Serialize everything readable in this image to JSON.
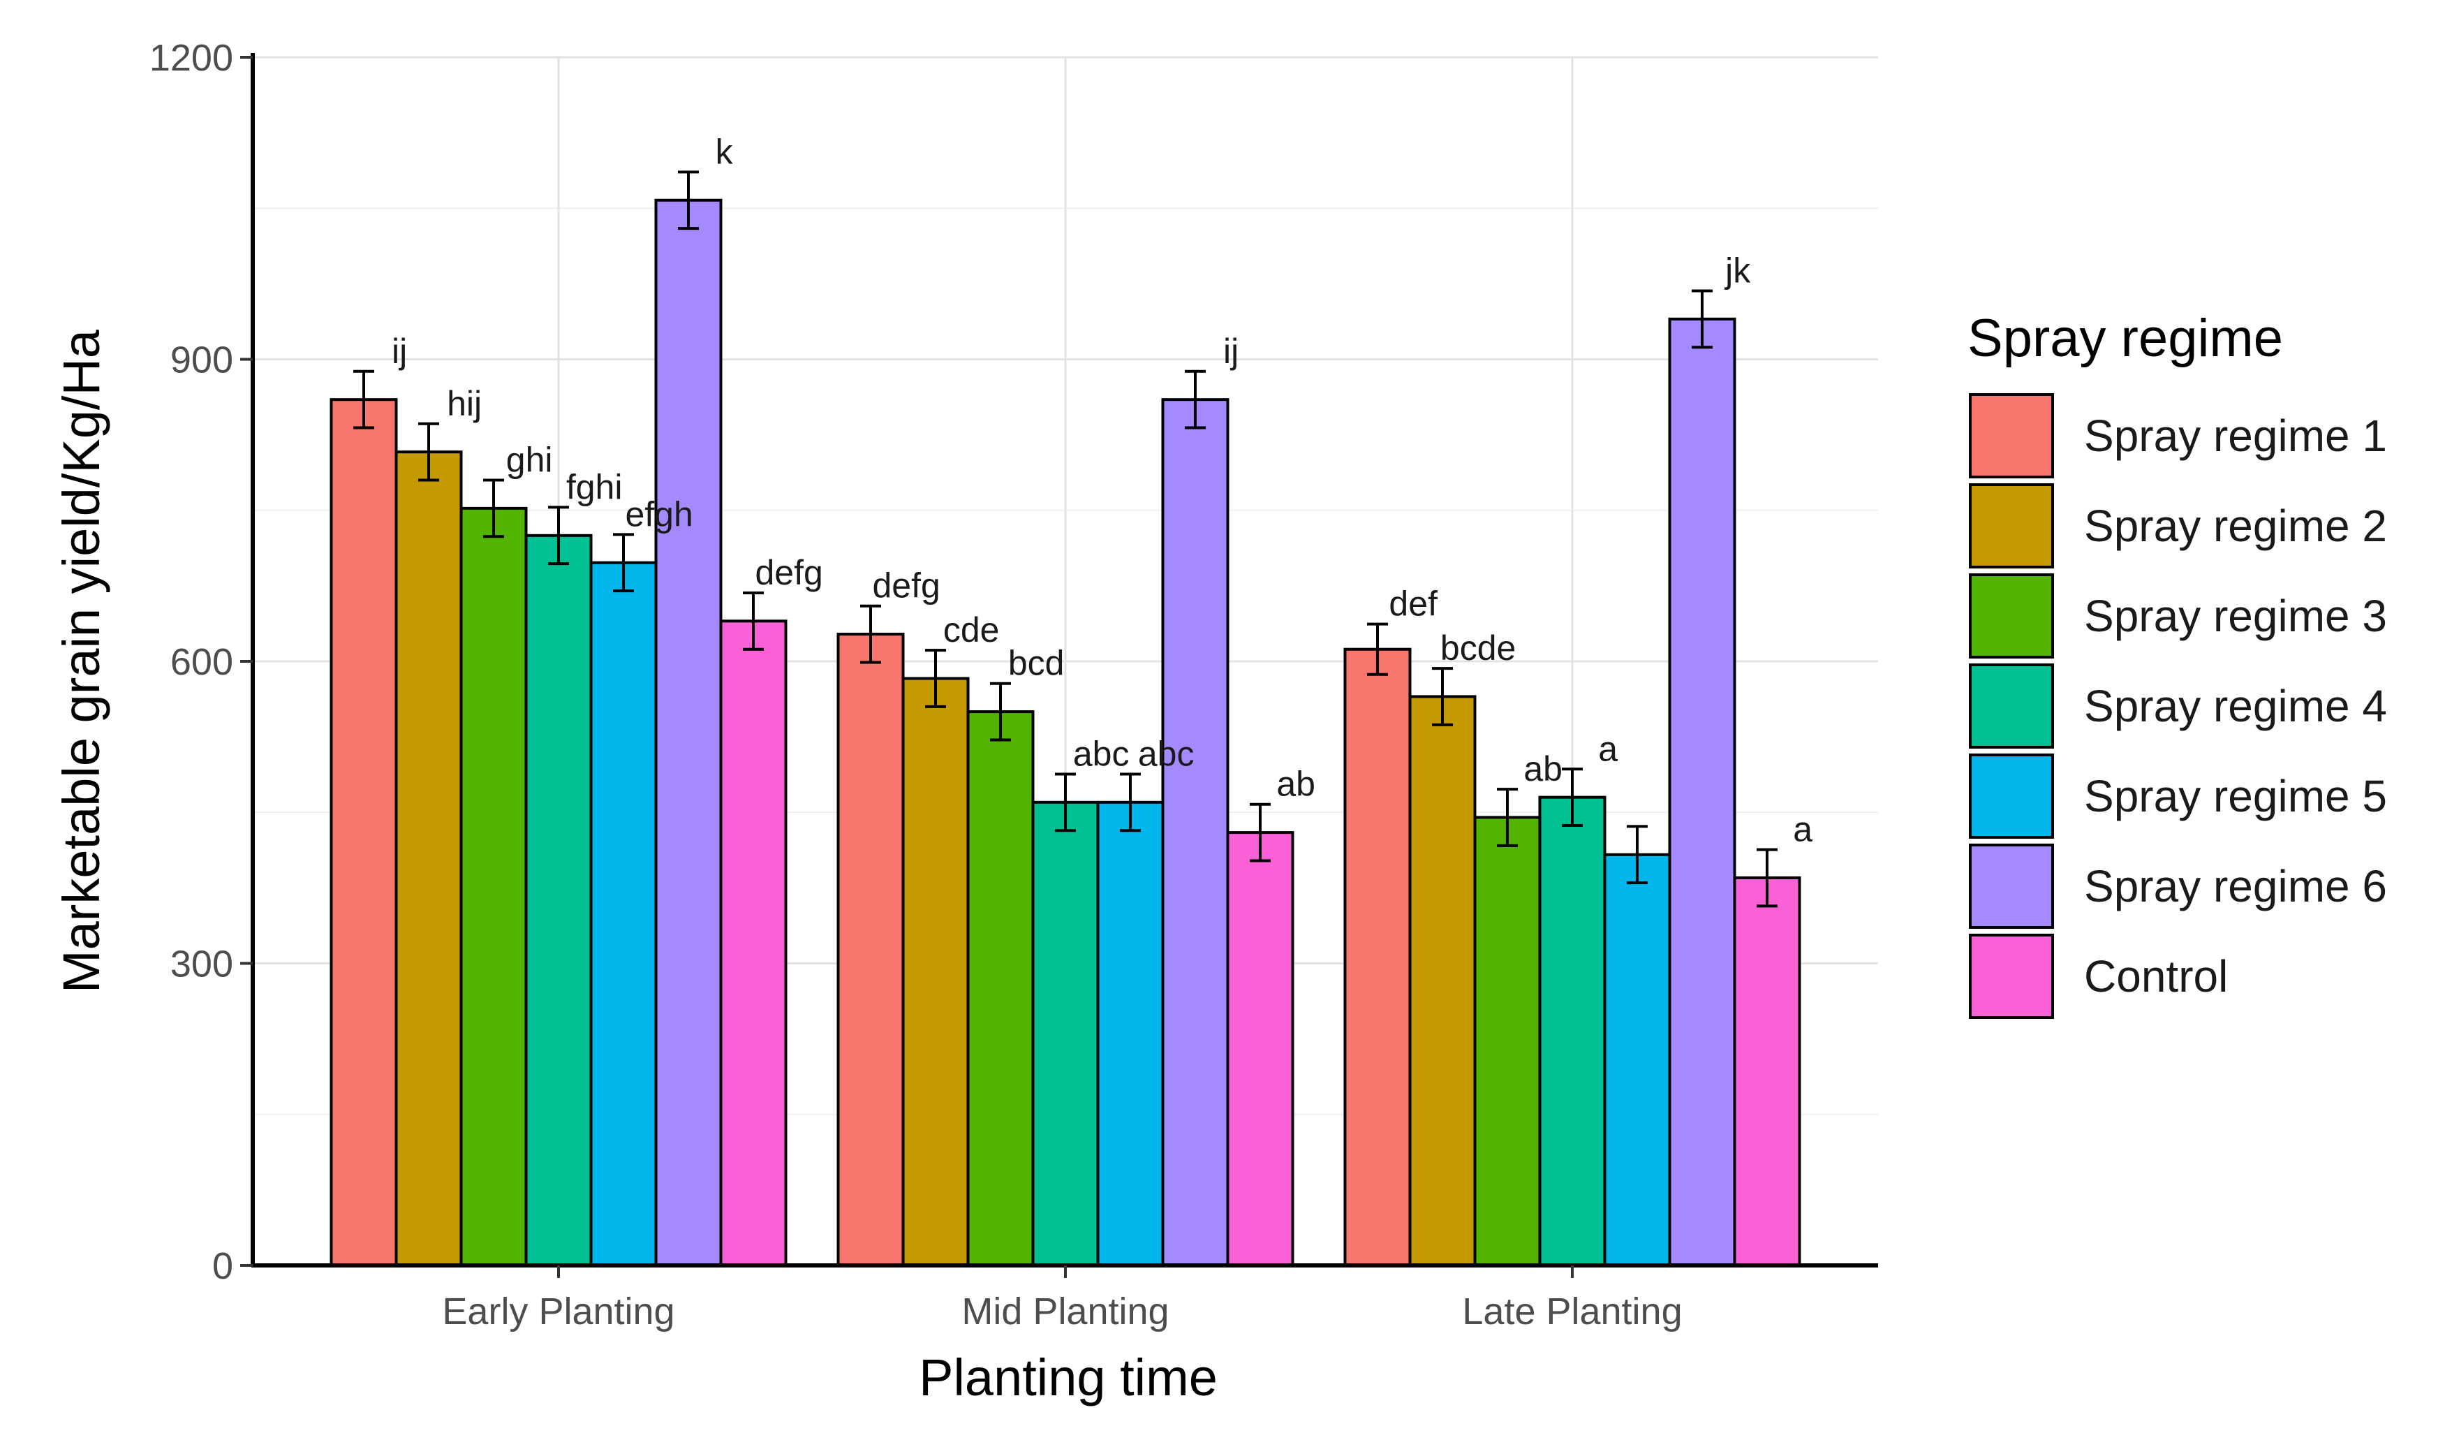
{
  "chart_data": {
    "type": "bar",
    "xlabel": "Planting time",
    "ylabel": "Marketable grain yield/Kg/Ha",
    "ylim": [
      0,
      1200
    ],
    "yticks": [
      0,
      300,
      600,
      900,
      1200
    ],
    "grid": true,
    "categories": [
      "Early Planting",
      "Mid Planting",
      "Late Planting"
    ],
    "legend": {
      "title": "Spray  regime",
      "position": "right"
    },
    "series": [
      {
        "name": "Spray regime 1",
        "color": "#F8766D",
        "values": [
          860,
          627,
          612
        ],
        "errors": [
          28,
          28,
          25
        ],
        "letters": [
          "ij",
          "defg",
          "def"
        ]
      },
      {
        "name": "Spray regime 2",
        "color": "#C49A00",
        "values": [
          808,
          583,
          565
        ],
        "errors": [
          28,
          28,
          28
        ],
        "letters": [
          "hij",
          "cde",
          "bcde"
        ]
      },
      {
        "name": "Spray regime 3",
        "color": "#53B400",
        "values": [
          752,
          550,
          445
        ],
        "errors": [
          28,
          28,
          28
        ],
        "letters": [
          "ghi",
          "bcd",
          "ab"
        ]
      },
      {
        "name": "Spray regime 4",
        "color": "#00C094",
        "values": [
          725,
          460,
          465
        ],
        "errors": [
          28,
          28,
          28
        ],
        "letters": [
          "fghi",
          "abc",
          "a"
        ]
      },
      {
        "name": "Spray regime 5",
        "color": "#00B6EB",
        "values": [
          698,
          460,
          408
        ],
        "errors": [
          28,
          28,
          28
        ],
        "letters": [
          "efgh",
          "abc",
          ""
        ]
      },
      {
        "name": "Spray regime 6",
        "color": "#A58AFF",
        "values": [
          1058,
          860,
          940
        ],
        "errors": [
          28,
          28,
          28
        ],
        "letters": [
          "k",
          "ij",
          "jk"
        ]
      },
      {
        "name": "Control",
        "color": "#FB61D7",
        "values": [
          640,
          430,
          385
        ],
        "errors": [
          28,
          28,
          28
        ],
        "letters": [
          "defg",
          "ab",
          "a"
        ]
      }
    ]
  }
}
